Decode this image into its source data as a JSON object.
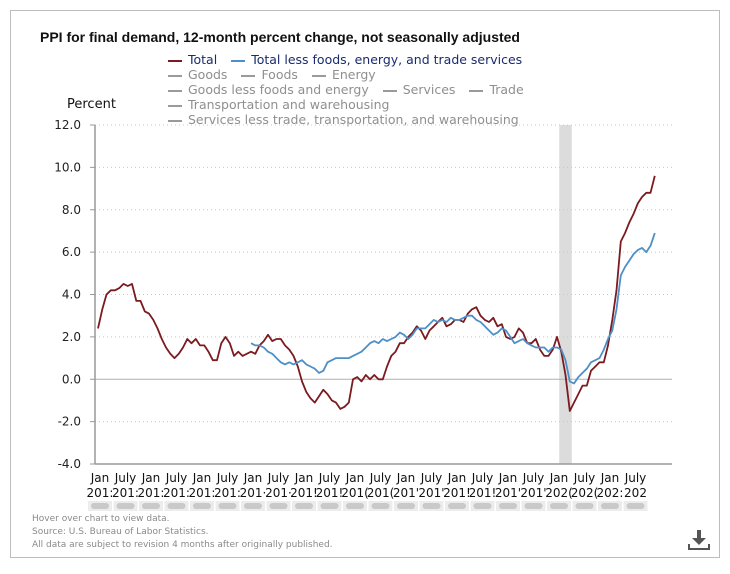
{
  "chart_data": {
    "type": "line",
    "title": "PPI for final demand, 12-month percent change, not seasonally adjusted",
    "ylabel": "Percent",
    "xlabel": "",
    "ylim": [
      -4.0,
      12.0
    ],
    "yticks": [
      "12.0",
      "10.0",
      "8.0",
      "6.0",
      "4.0",
      "2.0",
      "0.0",
      "-2.0",
      "-4.0"
    ],
    "ytick_values": [
      12,
      10,
      8,
      6,
      4,
      2,
      0,
      -2,
      -4
    ],
    "grid": "horizontal-dotted",
    "x_start": "2011-01",
    "xticks": [
      {
        "month": "Jan",
        "year": "201:"
      },
      {
        "month": "July",
        "year": "201:"
      },
      {
        "month": "Jan",
        "year": "201:"
      },
      {
        "month": "July",
        "year": "201:"
      },
      {
        "month": "Jan",
        "year": "201:"
      },
      {
        "month": "July",
        "year": "201:"
      },
      {
        "month": "Jan",
        "year": "201·"
      },
      {
        "month": "July",
        "year": "201·"
      },
      {
        "month": "Jan",
        "year": "201!"
      },
      {
        "month": "July",
        "year": "201!"
      },
      {
        "month": "Jan",
        "year": "201("
      },
      {
        "month": "July",
        "year": "201("
      },
      {
        "month": "Jan",
        "year": "201'"
      },
      {
        "month": "July",
        "year": "201'"
      },
      {
        "month": "Jan",
        "year": "201!"
      },
      {
        "month": "July",
        "year": "201!"
      },
      {
        "month": "Jan",
        "year": "201'"
      },
      {
        "month": "July",
        "year": "201'"
      },
      {
        "month": "Jan",
        "year": "202("
      },
      {
        "month": "July",
        "year": "202("
      },
      {
        "month": "Jan",
        "year": "202:"
      },
      {
        "month": "July",
        "year": "202"
      }
    ],
    "recession_shading": {
      "start": "2020-02",
      "end": "2020-04"
    },
    "legend_placement": "top",
    "series": [
      {
        "name": "Total",
        "color": "#7b1a1f",
        "active": true,
        "start": "2011-01",
        "values": [
          2.4,
          3.3,
          4.0,
          4.2,
          4.2,
          4.3,
          4.5,
          4.4,
          4.5,
          3.7,
          3.7,
          3.2,
          3.1,
          2.8,
          2.4,
          1.9,
          1.5,
          1.2,
          1.0,
          1.2,
          1.5,
          1.9,
          1.7,
          1.9,
          1.6,
          1.6,
          1.3,
          0.9,
          0.9,
          1.7,
          2.0,
          1.7,
          1.1,
          1.3,
          1.1,
          1.2,
          1.3,
          1.2,
          1.6,
          1.8,
          2.1,
          1.8,
          1.9,
          1.9,
          1.6,
          1.4,
          1.1,
          0.6,
          -0.1,
          -0.6,
          -0.9,
          -1.1,
          -0.8,
          -0.5,
          -0.7,
          -1.0,
          -1.1,
          -1.4,
          -1.3,
          -1.1,
          0.0,
          0.1,
          -0.1,
          0.2,
          0.0,
          0.2,
          0.0,
          0.0,
          0.6,
          1.1,
          1.3,
          1.7,
          1.7,
          2.0,
          2.2,
          2.5,
          2.3,
          1.9,
          2.3,
          2.5,
          2.7,
          2.9,
          2.5,
          2.6,
          2.8,
          2.8,
          2.7,
          3.1,
          3.3,
          3.4,
          3.0,
          2.8,
          2.7,
          2.9,
          2.5,
          2.6,
          2.0,
          1.9,
          2.0,
          2.4,
          2.2,
          1.7,
          1.7,
          1.9,
          1.4,
          1.1,
          1.1,
          1.4,
          2.0,
          1.3,
          0.2,
          -1.5,
          -1.1,
          -0.7,
          -0.3,
          -0.3,
          0.4,
          0.6,
          0.8,
          0.8,
          1.6,
          2.8,
          4.2,
          6.5,
          6.9,
          7.4,
          7.8,
          8.3,
          8.6,
          8.8,
          8.8,
          9.6
        ]
      },
      {
        "name": "Total less foods, energy, and trade services",
        "color": "#4d8fc7",
        "active": true,
        "start": "2014-01",
        "values": [
          1.7,
          1.6,
          1.6,
          1.5,
          1.3,
          1.2,
          1.0,
          0.8,
          0.7,
          0.8,
          0.7,
          0.8,
          0.9,
          0.7,
          0.6,
          0.5,
          0.3,
          0.4,
          0.8,
          0.9,
          1.0,
          1.0,
          1.0,
          1.0,
          1.1,
          1.2,
          1.3,
          1.5,
          1.7,
          1.8,
          1.7,
          1.9,
          1.8,
          1.9,
          2.0,
          2.2,
          2.1,
          1.9,
          2.1,
          2.4,
          2.4,
          2.4,
          2.6,
          2.8,
          2.7,
          2.8,
          2.7,
          2.9,
          2.8,
          2.8,
          2.9,
          3.0,
          3.0,
          2.8,
          2.7,
          2.5,
          2.3,
          2.1,
          2.2,
          2.4,
          2.3,
          2.0,
          1.7,
          1.8,
          1.9,
          1.7,
          1.6,
          1.5,
          1.5,
          1.5,
          1.3,
          1.5,
          1.5,
          1.4,
          0.9,
          -0.1,
          -0.2,
          0.1,
          0.3,
          0.5,
          0.8,
          0.9,
          1.0,
          1.4,
          1.9,
          2.3,
          3.3,
          4.9,
          5.3,
          5.6,
          5.9,
          6.1,
          6.2,
          6.0,
          6.3,
          6.9
        ]
      },
      {
        "name": "Goods",
        "active": false
      },
      {
        "name": "Foods",
        "active": false
      },
      {
        "name": "Energy",
        "active": false
      },
      {
        "name": "Goods less foods and energy",
        "active": false
      },
      {
        "name": "Services",
        "active": false
      },
      {
        "name": "Trade",
        "active": false
      },
      {
        "name": "Transportation and warehousing",
        "active": false
      },
      {
        "name": "Services less trade, transportation, and warehousing",
        "active": false
      }
    ]
  },
  "legend": {
    "rows": [
      [
        {
          "label": "Total",
          "color": "#7b1a1f",
          "active": true
        },
        {
          "label": "Total less foods, energy, and trade services",
          "color": "#4d8fc7",
          "active": true
        }
      ],
      [
        {
          "label": "Goods",
          "active": false
        },
        {
          "label": "Foods",
          "active": false
        },
        {
          "label": "Energy",
          "active": false
        }
      ],
      [
        {
          "label": "Goods less foods and energy",
          "active": false
        },
        {
          "label": "Services",
          "active": false
        },
        {
          "label": "Trade",
          "active": false
        }
      ],
      [
        {
          "label": "Transportation and warehousing",
          "active": false
        }
      ],
      [
        {
          "label": "Services less trade, transportation, and warehousing",
          "active": false
        }
      ]
    ]
  },
  "notes": {
    "hover": "Hover over chart to view data.",
    "source": "Source: U.S. Bureau of Labor Statistics.",
    "revision": "All data are subject to revision 4 months after originally published."
  },
  "icons": {
    "download": "download-icon"
  }
}
